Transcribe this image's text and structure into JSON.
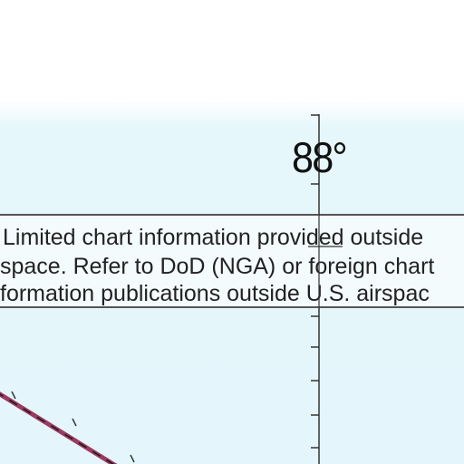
{
  "map": {
    "meridian_label": "88°",
    "notice": {
      "lines": [
        "Limited chart information provided outside",
        "space. Refer to DoD (NGA) or foreign chart",
        "formation publications outside U.S. airspac"
      ]
    },
    "colors": {
      "water_tint": "#e4f6fb",
      "route_line": "#9c3a62",
      "ink": "#222222"
    }
  }
}
